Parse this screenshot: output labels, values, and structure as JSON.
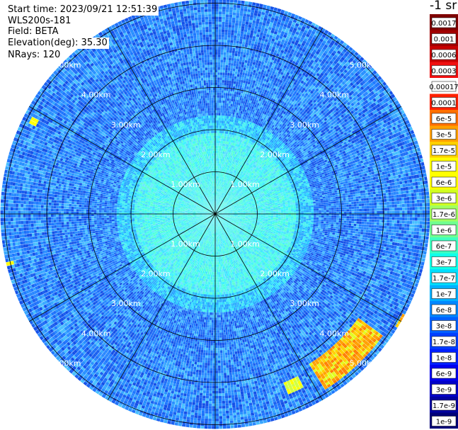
{
  "header": {
    "start_time": "Start time: 2023/09/21 12:51:39",
    "instrument": "WLS200s-181",
    "field": "Field: BETA",
    "elevation": "Elevation(deg): 35.30",
    "nrays": "NRays: 120"
  },
  "colorbar": {
    "unit": "-1 sr",
    "labels": [
      "0.0017",
      "0.001",
      "0.0006",
      "0.0003",
      "0.00017",
      "0.0001",
      "6e-5",
      "3e-5",
      "1.7e-5",
      "1e-5",
      "6e-6",
      "3e-6",
      "1.7e-6",
      "1e-6",
      "6e-7",
      "3e-7",
      "1.7e-7",
      "1e-7",
      "6e-8",
      "3e-8",
      "1.7e-8",
      "1e-8",
      "6e-9",
      "3e-9",
      "1.7e-9",
      "1e-9"
    ],
    "colors": [
      "#800000",
      "#a00000",
      "#c80000",
      "#f01010",
      "#ffffff",
      "#ff2000",
      "#ff7000",
      "#ffa000",
      "#ffd000",
      "#ffff00",
      "#ffff00",
      "#d0ff20",
      "#a0ff60",
      "#70ff90",
      "#40ffc0",
      "#10ffe8",
      "#00e0ff",
      "#00b0ff",
      "#0088ff",
      "#0060ff",
      "#0040ff",
      "#0020ff",
      "#0000f0",
      "#0000c8",
      "#0000a0",
      "#000078"
    ]
  },
  "chart_data": {
    "type": "heatmap",
    "projection": "polar PPI (plan position indicator)",
    "field": "BETA",
    "elevation_deg": 35.3,
    "n_rays": 120,
    "range_ring_labels": [
      "1.00km",
      "2.00km",
      "3.00km",
      "4.00km",
      "5.00km"
    ],
    "range_rings_km": [
      1,
      2,
      3,
      4,
      5
    ],
    "azimuth_grid_spacing_deg": 30,
    "color_scale": "log",
    "value_range": [
      1e-09,
      0.0017
    ],
    "background_level": "1e-8 to 1e-7 (blue / cyan)",
    "inner_level": "1e-7 to 3e-7 (cyan / aquamarine) within ~2 km",
    "enhanced_returns": [
      {
        "azimuth_deg_range": [
          118,
          122
        ],
        "range_km": [
          5.0,
          5.4
        ],
        "level": "1.7e-5 to 1e-4"
      },
      {
        "azimuth_deg_range": [
          126,
          148
        ],
        "range_km": [
          4.2,
          4.9
        ],
        "level": "6e-5 to 1e-4"
      },
      {
        "azimuth_deg_range": [
          153,
          158
        ],
        "range_km": [
          4.3,
          4.6
        ],
        "level": "1e-5"
      },
      {
        "azimuth_deg_range": [
          296,
          298
        ],
        "range_km": [
          4.7,
          4.9
        ],
        "level": "1e-5"
      },
      {
        "azimuth_deg_range": [
          256,
          257
        ],
        "range_km": [
          4.9,
          5.1
        ],
        "level": "1e-5"
      }
    ]
  }
}
